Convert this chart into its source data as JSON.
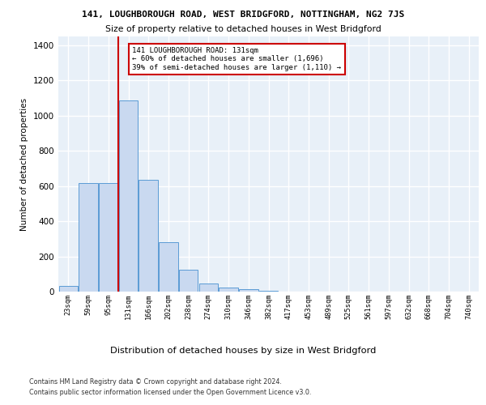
{
  "title1": "141, LOUGHBOROUGH ROAD, WEST BRIDGFORD, NOTTINGHAM, NG2 7JS",
  "title2": "Size of property relative to detached houses in West Bridgford",
  "xlabel": "Distribution of detached houses by size in West Bridgford",
  "ylabel": "Number of detached properties",
  "footnote1": "Contains HM Land Registry data © Crown copyright and database right 2024.",
  "footnote2": "Contains public sector information licensed under the Open Government Licence v3.0.",
  "annotation_line1": "141 LOUGHBOROUGH ROAD: 131sqm",
  "annotation_line2": "← 60% of detached houses are smaller (1,696)",
  "annotation_line3": "39% of semi-detached houses are larger (1,110) →",
  "bar_labels": [
    "23sqm",
    "59sqm",
    "95sqm",
    "131sqm",
    "166sqm",
    "202sqm",
    "238sqm",
    "274sqm",
    "310sqm",
    "346sqm",
    "382sqm",
    "417sqm",
    "453sqm",
    "489sqm",
    "525sqm",
    "561sqm",
    "597sqm",
    "632sqm",
    "668sqm",
    "704sqm",
    "740sqm"
  ],
  "bar_values": [
    30,
    615,
    615,
    1085,
    635,
    280,
    125,
    45,
    22,
    14,
    5,
    0,
    0,
    0,
    0,
    0,
    0,
    0,
    0,
    0,
    0
  ],
  "bar_color": "#c9d9f0",
  "bar_edge_color": "#5b9bd5",
  "vline_color": "#cc0000",
  "ylim": [
    0,
    1450
  ],
  "yticks": [
    0,
    200,
    400,
    600,
    800,
    1000,
    1200,
    1400
  ],
  "bg_color": "#e8f0f8",
  "grid_color": "#ffffff",
  "annotation_box_color": "#cc0000"
}
